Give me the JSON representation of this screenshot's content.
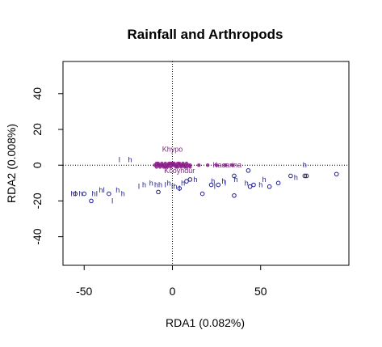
{
  "chart_data": {
    "type": "scatter",
    "title": "Rainfall and Arthropods",
    "xlabel": "RDA1 (0.082%)",
    "ylabel": "RDA2 (0.008%)",
    "xlim": [
      -62,
      100
    ],
    "ylim": [
      -56,
      58
    ],
    "xticks": [
      -50,
      0,
      50
    ],
    "yticks": [
      -40,
      -20,
      0,
      20,
      40
    ],
    "reference_lines": {
      "x": 0,
      "y": 0,
      "style": "dotted"
    },
    "colors": {
      "sites": "#1c1c8f",
      "species": "#7a1f7a",
      "species_cloud": "#8b1a8b"
    },
    "site_points": [
      [
        93,
        -5
      ],
      [
        76,
        -6
      ],
      [
        75,
        -6
      ],
      [
        67,
        -6
      ],
      [
        60,
        -10
      ],
      [
        55,
        -12
      ],
      [
        46,
        -11
      ],
      [
        44,
        -12
      ],
      [
        43,
        -3
      ],
      [
        35,
        -17
      ],
      [
        35,
        -6
      ],
      [
        26,
        -11
      ],
      [
        22,
        -11
      ],
      [
        17,
        -16
      ],
      [
        10,
        -8
      ],
      [
        8,
        -9
      ],
      [
        4,
        -13
      ],
      [
        -8,
        -15
      ],
      [
        -36,
        -16
      ],
      [
        -46,
        -20
      ],
      [
        -50,
        -16
      ],
      [
        -55,
        -16
      ]
    ],
    "site_letters": [
      {
        "text": "h",
        "x": 75,
        "y": 0
      },
      {
        "text": "I",
        "x": -30,
        "y": 3
      },
      {
        "text": "h",
        "x": -24,
        "y": 3
      },
      {
        "text": "h",
        "x": 70,
        "y": -7
      },
      {
        "text": "h",
        "x": 52,
        "y": -8
      },
      {
        "text": "h",
        "x": 50,
        "y": -11
      },
      {
        "text": "h",
        "x": 42,
        "y": -10
      },
      {
        "text": "h",
        "x": 36,
        "y": -8
      },
      {
        "text": "h",
        "x": 29,
        "y": -9
      },
      {
        "text": "h",
        "x": 23,
        "y": -9
      },
      {
        "text": "h",
        "x": 13,
        "y": -8
      },
      {
        "text": "I",
        "x": 30,
        "y": -10
      },
      {
        "text": "I",
        "x": 24,
        "y": -12
      },
      {
        "text": "h",
        "x": 6,
        "y": -10
      },
      {
        "text": "h",
        "x": -2,
        "y": -10
      },
      {
        "text": "I",
        "x": -19,
        "y": -12
      },
      {
        "text": "h",
        "x": -16,
        "y": -11
      },
      {
        "text": "h",
        "x": -12,
        "y": -10
      },
      {
        "text": "hh",
        "x": -8,
        "y": -11
      },
      {
        "text": "I",
        "x": -4,
        "y": -11
      },
      {
        "text": "Ih",
        "x": 1,
        "y": -12
      },
      {
        "text": "I",
        "x": 4,
        "y": -13
      },
      {
        "text": "hI",
        "x": -40,
        "y": -14
      },
      {
        "text": "h",
        "x": -31,
        "y": -14
      },
      {
        "text": "h",
        "x": -28,
        "y": -16
      },
      {
        "text": "hI",
        "x": -44,
        "y": -16
      },
      {
        "text": "h",
        "x": -52,
        "y": -16
      },
      {
        "text": "hI",
        "x": -56,
        "y": -16
      },
      {
        "text": "I",
        "x": -34,
        "y": -20
      }
    ],
    "species_cloud": [
      [
        -10,
        0
      ],
      [
        -8,
        1
      ],
      [
        -6,
        0
      ],
      [
        -4,
        1
      ],
      [
        -2,
        0
      ],
      [
        0,
        1
      ],
      [
        2,
        0
      ],
      [
        4,
        1
      ],
      [
        6,
        0
      ],
      [
        8,
        1
      ],
      [
        10,
        0
      ],
      [
        -9,
        -1
      ],
      [
        -7,
        0
      ],
      [
        -5,
        -1
      ],
      [
        -3,
        0
      ],
      [
        -1,
        -1
      ],
      [
        1,
        0
      ],
      [
        3,
        -1
      ],
      [
        5,
        0
      ],
      [
        7,
        -1
      ],
      [
        9,
        0
      ],
      [
        -8,
        0
      ],
      [
        0,
        0
      ],
      [
        6,
        1
      ],
      [
        -4,
        -1
      ],
      [
        3,
        1
      ],
      [
        -6,
        1
      ],
      [
        8,
        -1
      ],
      [
        -2,
        1
      ],
      [
        10,
        -1
      ],
      [
        -9,
        1
      ],
      [
        5,
        -1
      ],
      [
        1,
        1
      ],
      [
        -3,
        -1
      ],
      [
        7,
        0
      ],
      [
        -7,
        -1
      ],
      [
        4,
        0
      ],
      [
        -1,
        1
      ],
      [
        2,
        -1
      ],
      [
        -5,
        0
      ],
      [
        15,
        0
      ],
      [
        20,
        0
      ],
      [
        25,
        0
      ],
      [
        30,
        0
      ],
      [
        34,
        0
      ]
    ],
    "species_labels": [
      {
        "text": "Khypo",
        "x": 0,
        "y": 9
      },
      {
        "text": "Kacarina",
        "x": 31,
        "y": 0
      },
      {
        "text": "Kcoyndur",
        "x": 4,
        "y": -3
      }
    ]
  }
}
